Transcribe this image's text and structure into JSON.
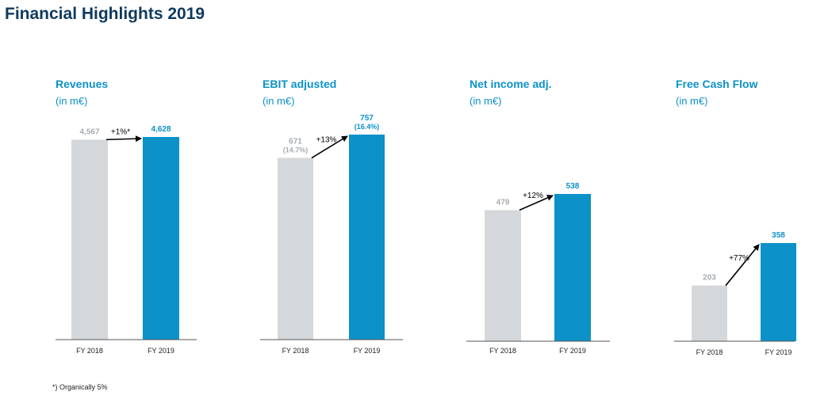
{
  "page": {
    "title": "Financial Highlights 2019"
  },
  "footnote": "*) Organically 5%",
  "colors": {
    "title": "#0f3a5f",
    "accent": "#0c91c9",
    "prior": "#d5d8da",
    "prior_label": "#a7acb0",
    "axis": "#555555"
  },
  "chart_data": [
    {
      "type": "bar",
      "title": "Revenues",
      "unit": "(in m€)",
      "categories": [
        "FY 2018",
        "FY 2019"
      ],
      "values": [
        4567,
        4628
      ],
      "value_labels": [
        "4,567",
        "4,628"
      ],
      "margin_labels": [
        "",
        ""
      ],
      "change_label": "+1%*"
    },
    {
      "type": "bar",
      "title": "EBIT adjusted",
      "unit": "(in m€)",
      "categories": [
        "FY 2018",
        "FY 2019"
      ],
      "values": [
        671,
        757
      ],
      "value_labels": [
        "671",
        "757"
      ],
      "margin_labels": [
        "(14.7%)",
        "(16.4%)"
      ],
      "change_label": "+13%"
    },
    {
      "type": "bar",
      "title": "Net income adj.",
      "unit": "(in m€)",
      "categories": [
        "FY 2018",
        "FY 2019"
      ],
      "values": [
        479,
        538
      ],
      "value_labels": [
        "479",
        "538"
      ],
      "margin_labels": [
        "",
        ""
      ],
      "change_label": "+12%"
    },
    {
      "type": "bar",
      "title": "Free Cash Flow",
      "unit": "(in m€)",
      "categories": [
        "FY 2018",
        "FY 2019"
      ],
      "values": [
        203,
        358
      ],
      "value_labels": [
        "203",
        "358"
      ],
      "margin_labels": [
        "",
        ""
      ],
      "change_label": "+77%"
    }
  ]
}
